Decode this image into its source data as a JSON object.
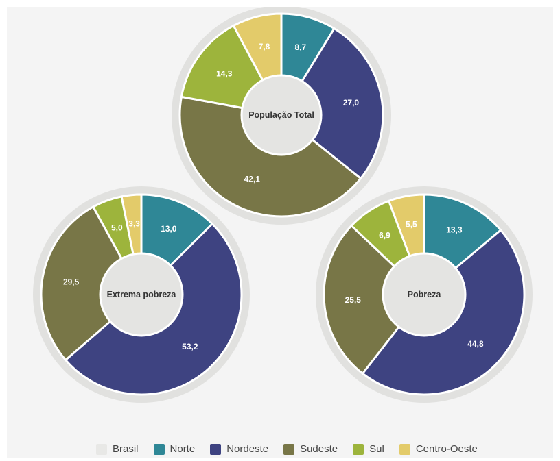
{
  "colors": {
    "panel_bg": "#f4f4f4",
    "ring": "#e1e1df",
    "center": "#e4e4e2",
    "Brasil": "#e8e8e6",
    "Norte": "#2f8796",
    "Nordeste": "#3e4381",
    "Sudeste": "#787647",
    "Sul": "#9db43c",
    "Centro-Oeste": "#e3cb6a"
  },
  "chart_data": [
    {
      "type": "pie",
      "title": "População Total",
      "categories": [
        "Norte",
        "Nordeste",
        "Sudeste",
        "Sul",
        "Centro-Oeste"
      ],
      "values": [
        8.7,
        27.0,
        42.1,
        14.3,
        7.8
      ],
      "labels": [
        "8,7",
        "27,0",
        "42,1",
        "14,3",
        "7,8"
      ]
    },
    {
      "type": "pie",
      "title": "Extrema pobreza",
      "categories": [
        "Norte",
        "Nordeste",
        "Sudeste",
        "Sul",
        "Centro-Oeste"
      ],
      "values": [
        13.0,
        53.2,
        29.5,
        5.0,
        3.3
      ],
      "labels": [
        "13,0",
        "53,2",
        "29,5",
        "5,0",
        "3,3"
      ]
    },
    {
      "type": "pie",
      "title": "Pobreza",
      "categories": [
        "Norte",
        "Nordeste",
        "Sudeste",
        "Sul",
        "Centro-Oeste"
      ],
      "values": [
        13.3,
        44.8,
        25.5,
        6.9,
        5.5
      ],
      "labels": [
        "13,3",
        "44,8",
        "25,5",
        "6,9",
        "5,5"
      ]
    }
  ],
  "legend": [
    "Brasil",
    "Norte",
    "Nordeste",
    "Sudeste",
    "Sul",
    "Centro-Oeste"
  ]
}
